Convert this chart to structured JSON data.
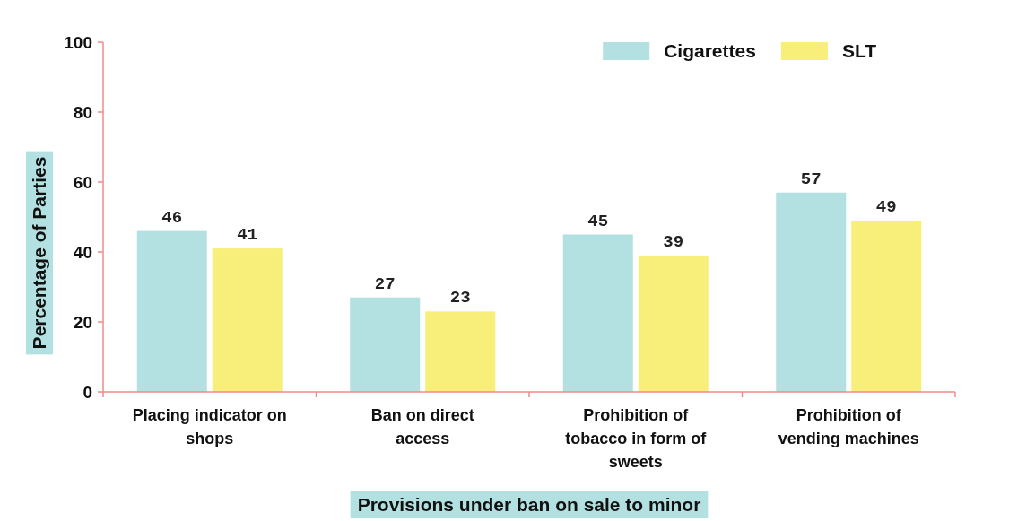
{
  "chart_data": {
    "type": "bar",
    "xlabel": "Provisions under ban on sale to minor",
    "ylabel": "Percentage of Parties",
    "categories": [
      "Placing indicator on shops",
      "Ban on direct access",
      "Prohibition of tobacco in form of sweets",
      "Prohibition of vending machines"
    ],
    "series": [
      {
        "name": "Cigarettes",
        "color": "#b3e0e0",
        "values": [
          46,
          27,
          45,
          57
        ]
      },
      {
        "name": "SLT",
        "color": "#f8ef7a",
        "values": [
          41,
          23,
          39,
          49
        ]
      }
    ],
    "ylim": [
      0,
      100
    ],
    "yticks": [
      0,
      20,
      40,
      60,
      80,
      100
    ],
    "grid": false,
    "legend": "top right",
    "data_labels": true
  }
}
